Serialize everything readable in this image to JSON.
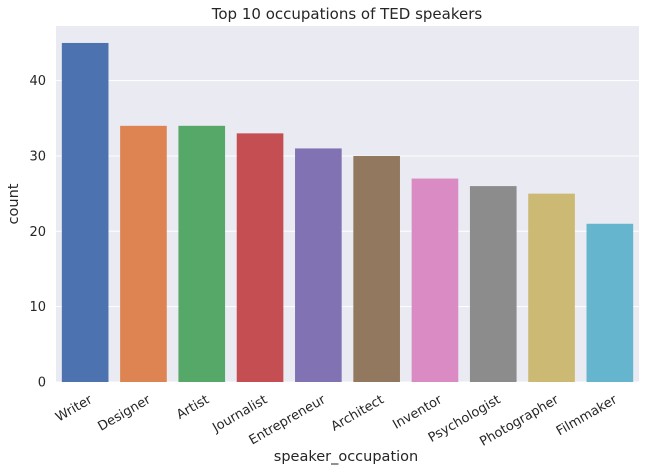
{
  "chart_data": {
    "type": "bar",
    "title": "Top 10 occupations of TED speakers",
    "xlabel": "speaker_occupation",
    "ylabel": "count",
    "categories": [
      "Writer",
      "Designer",
      "Artist",
      "Journalist",
      "Entrepreneur",
      "Architect",
      "Inventor",
      "Psychologist",
      "Photographer",
      "Filmmaker"
    ],
    "values": [
      45,
      34,
      34,
      33,
      31,
      30,
      27,
      26,
      25,
      21
    ],
    "ylim": [
      0,
      47.25
    ],
    "yticks": [
      0,
      10,
      20,
      30,
      40
    ],
    "grid": true,
    "background_color": "#eaeaf2",
    "bar_colors": [
      "#4c72b0",
      "#dd8452",
      "#55a868",
      "#c44e52",
      "#8172b3",
      "#937860",
      "#da8bc3",
      "#8c8c8c",
      "#ccb974",
      "#64b5cd"
    ]
  }
}
